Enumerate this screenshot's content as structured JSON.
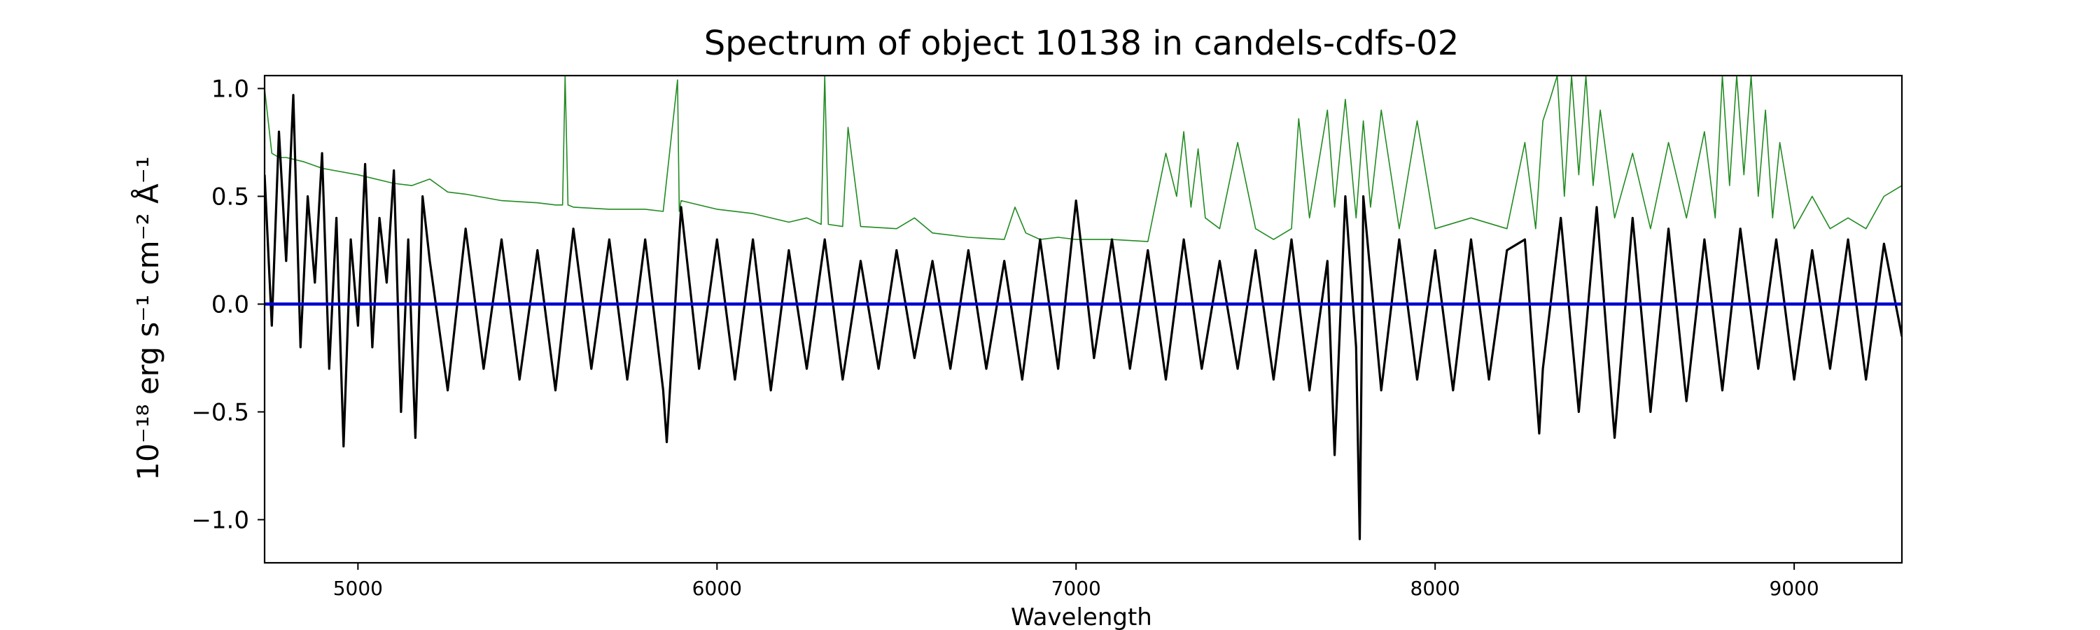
{
  "chart_data": {
    "type": "line",
    "title": "Spectrum of object 10138 in candels-cdfs-02",
    "xlabel": "Wavelength",
    "ylabel": "10⁻¹⁸ erg s⁻¹ cm⁻² Å⁻¹",
    "xlim": [
      4740,
      9300
    ],
    "ylim": [
      -1.2,
      1.06
    ],
    "xticks": [
      5000,
      6000,
      7000,
      8000,
      9000
    ],
    "xtick_labels": [
      "5000",
      "6000",
      "7000",
      "8000",
      "9000"
    ],
    "yticks": [
      -1.0,
      -0.5,
      0.0,
      0.5,
      1.0
    ],
    "ytick_labels": [
      "−1.0",
      "−0.5",
      "0.0",
      "0.5",
      "1.0"
    ],
    "grid": false,
    "series": [
      {
        "color": "#000000",
        "style": "line",
        "description_note": "observed flux",
        "x": [
          4740,
          4760,
          4780,
          4800,
          4820,
          4840,
          4860,
          4880,
          4900,
          4920,
          4940,
          4960,
          4980,
          5000,
          5020,
          5040,
          5060,
          5080,
          5100,
          5120,
          5140,
          5160,
          5180,
          5200,
          5250,
          5300,
          5350,
          5400,
          5450,
          5500,
          5550,
          5600,
          5650,
          5700,
          5750,
          5800,
          5850,
          5860,
          5900,
          5950,
          6000,
          6050,
          6100,
          6150,
          6200,
          6250,
          6300,
          6350,
          6400,
          6450,
          6500,
          6550,
          6600,
          6650,
          6700,
          6750,
          6800,
          6850,
          6900,
          6950,
          7000,
          7050,
          7100,
          7150,
          7200,
          7250,
          7300,
          7350,
          7400,
          7450,
          7500,
          7550,
          7600,
          7650,
          7700,
          7720,
          7750,
          7780,
          7790,
          7800,
          7850,
          7900,
          7950,
          8000,
          8050,
          8100,
          8150,
          8200,
          8250,
          8290,
          8300,
          8350,
          8400,
          8450,
          8500,
          8550,
          8600,
          8650,
          8700,
          8750,
          8800,
          8850,
          8900,
          8950,
          9000,
          9050,
          9100,
          9150,
          9200,
          9250,
          9300
        ],
        "y": [
          0.6,
          -0.1,
          0.8,
          0.2,
          0.97,
          -0.2,
          0.5,
          0.1,
          0.7,
          -0.3,
          0.4,
          -0.66,
          0.3,
          -0.1,
          0.65,
          -0.2,
          0.4,
          0.1,
          0.62,
          -0.5,
          0.3,
          -0.62,
          0.5,
          0.2,
          -0.4,
          0.35,
          -0.3,
          0.3,
          -0.35,
          0.25,
          -0.4,
          0.35,
          -0.3,
          0.3,
          -0.35,
          0.3,
          -0.4,
          -0.64,
          0.45,
          -0.3,
          0.3,
          -0.35,
          0.3,
          -0.4,
          0.25,
          -0.3,
          0.3,
          -0.35,
          0.2,
          -0.3,
          0.25,
          -0.25,
          0.2,
          -0.3,
          0.25,
          -0.3,
          0.2,
          -0.35,
          0.3,
          -0.3,
          0.48,
          -0.25,
          0.3,
          -0.3,
          0.25,
          -0.35,
          0.3,
          -0.3,
          0.2,
          -0.3,
          0.25,
          -0.35,
          0.3,
          -0.4,
          0.2,
          -0.7,
          0.5,
          -0.2,
          -1.09,
          0.5,
          -0.4,
          0.3,
          -0.35,
          0.25,
          -0.4,
          0.3,
          -0.35,
          0.25,
          0.3,
          -0.6,
          -0.3,
          0.4,
          -0.5,
          0.45,
          -0.62,
          0.4,
          -0.5,
          0.35,
          -0.45,
          0.3,
          -0.4,
          0.35,
          -0.3,
          0.3,
          -0.35,
          0.25,
          -0.3,
          0.3,
          -0.35,
          0.28,
          -0.15
        ]
      },
      {
        "color": "#228b22",
        "style": "thin-line",
        "description_note": "sky / model",
        "x": [
          4740,
          4760,
          4780,
          4800,
          4850,
          4900,
          5000,
          5100,
          5150,
          5200,
          5250,
          5300,
          5400,
          5500,
          5550,
          5570,
          5577,
          5585,
          5600,
          5700,
          5800,
          5850,
          5890,
          5895,
          5900,
          6000,
          6100,
          6200,
          6250,
          6290,
          6300,
          6310,
          6350,
          6365,
          6400,
          6500,
          6550,
          6600,
          6700,
          6800,
          6830,
          6860,
          6900,
          6950,
          7000,
          7100,
          7200,
          7250,
          7280,
          7300,
          7320,
          7340,
          7360,
          7400,
          7450,
          7500,
          7550,
          7600,
          7620,
          7650,
          7700,
          7720,
          7750,
          7780,
          7800,
          7820,
          7850,
          7900,
          7950,
          8000,
          8100,
          8200,
          8250,
          8280,
          8300,
          8320,
          8340,
          8360,
          8380,
          8400,
          8420,
          8440,
          8460,
          8500,
          8550,
          8600,
          8650,
          8700,
          8750,
          8780,
          8800,
          8820,
          8840,
          8860,
          8880,
          8900,
          8920,
          8940,
          8960,
          9000,
          9050,
          9100,
          9150,
          9200,
          9250,
          9300
        ],
        "y": [
          1.0,
          0.7,
          0.68,
          0.68,
          0.66,
          0.63,
          0.6,
          0.56,
          0.55,
          0.58,
          0.52,
          0.51,
          0.48,
          0.47,
          0.46,
          0.46,
          1.06,
          0.46,
          0.45,
          0.44,
          0.44,
          0.43,
          1.04,
          0.43,
          0.48,
          0.44,
          0.42,
          0.38,
          0.4,
          0.37,
          1.06,
          0.37,
          0.36,
          0.82,
          0.36,
          0.35,
          0.4,
          0.33,
          0.31,
          0.3,
          0.45,
          0.33,
          0.3,
          0.31,
          0.3,
          0.3,
          0.29,
          0.7,
          0.5,
          0.8,
          0.45,
          0.72,
          0.4,
          0.35,
          0.75,
          0.35,
          0.3,
          0.35,
          0.86,
          0.4,
          0.9,
          0.45,
          0.95,
          0.4,
          0.85,
          0.45,
          0.9,
          0.35,
          0.85,
          0.35,
          0.4,
          0.35,
          0.75,
          0.35,
          0.85,
          0.95,
          1.06,
          0.5,
          1.06,
          0.6,
          1.06,
          0.55,
          0.9,
          0.4,
          0.7,
          0.35,
          0.75,
          0.4,
          0.8,
          0.4,
          1.06,
          0.55,
          1.06,
          0.6,
          1.06,
          0.5,
          0.9,
          0.4,
          0.75,
          0.35,
          0.5,
          0.35,
          0.4,
          0.35,
          0.5,
          0.55
        ]
      },
      {
        "color": "#0000cd",
        "style": "thick-line",
        "description_note": "zero level",
        "x": [
          4740,
          9300
        ],
        "y": [
          0.0,
          0.0
        ]
      }
    ]
  }
}
